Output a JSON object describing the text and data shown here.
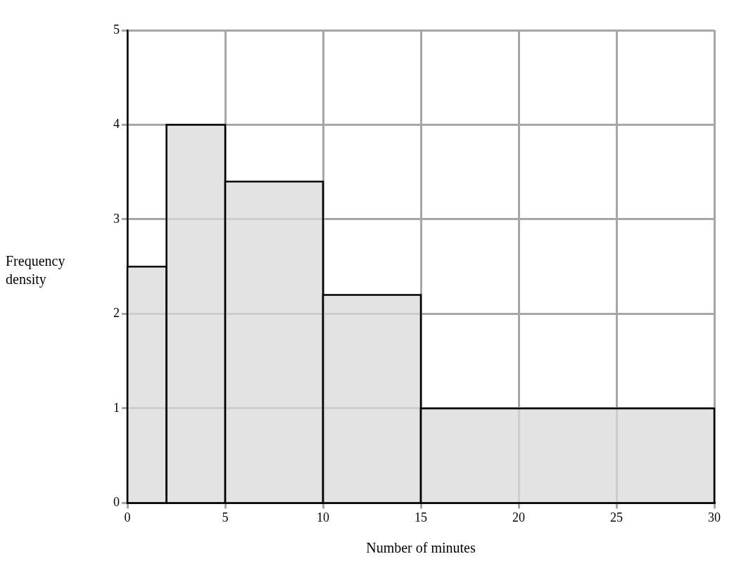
{
  "chart_data": {
    "type": "histogram",
    "xlabel": "Number of minutes",
    "ylabel": "Frequency density",
    "bins": [
      0,
      2,
      5,
      10,
      15,
      30
    ],
    "values": [
      2.5,
      4,
      3.4,
      2.2,
      1
    ],
    "color": "#d9d9d9",
    "xlim": [
      0,
      30
    ],
    "xticks": [
      0,
      5,
      10,
      15,
      20,
      25,
      30
    ],
    "ylim": [
      0,
      5
    ],
    "yticks": [
      0,
      1,
      2,
      3,
      4,
      5
    ],
    "grid": true
  }
}
